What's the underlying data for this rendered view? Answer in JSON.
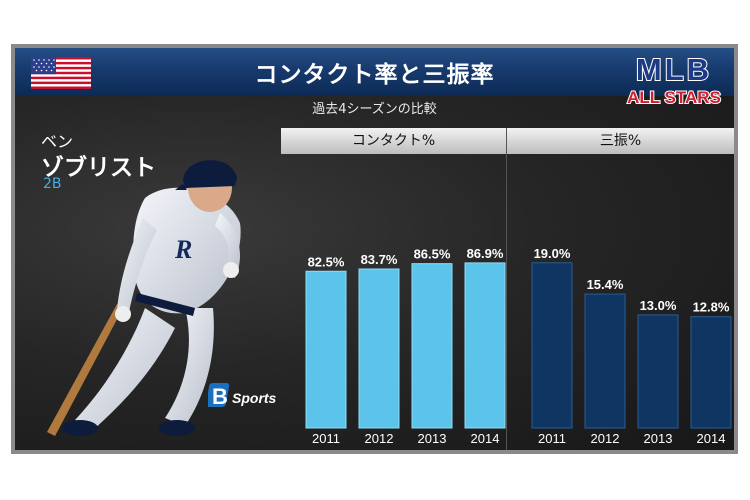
{
  "header": {
    "title": "コンタクト率と三振率",
    "subtitle": "過去4シーズンの比較"
  },
  "logo": {
    "line1": "MLB",
    "line2": "ALL STARS"
  },
  "player": {
    "first_name": "ベン",
    "last_name": "ゾブリスト",
    "position": "2B"
  },
  "sponsor": {
    "text": "Sports",
    "letter": "B"
  },
  "chart_data": [
    {
      "type": "bar",
      "title": "コンタクト%",
      "categories": [
        "2011",
        "2012",
        "2013",
        "2014"
      ],
      "values": [
        82.5,
        83.7,
        86.5,
        86.9
      ],
      "value_labels": [
        "82.5%",
        "83.7%",
        "86.5%",
        "86.9%"
      ],
      "ylim": [
        0,
        100
      ],
      "color": "#5cc3ea"
    },
    {
      "type": "bar",
      "title": "三振%",
      "categories": [
        "2011",
        "2012",
        "2013",
        "2014"
      ],
      "values": [
        19.0,
        15.4,
        13.0,
        12.8
      ],
      "value_labels": [
        "19.0%",
        "15.4%",
        "13.0%",
        "12.8%"
      ],
      "ylim": [
        0,
        23
      ],
      "color": "#0f3563"
    }
  ],
  "colors": {
    "title_bar": "#173a6e",
    "accent_blue": "#3fb0e6"
  }
}
